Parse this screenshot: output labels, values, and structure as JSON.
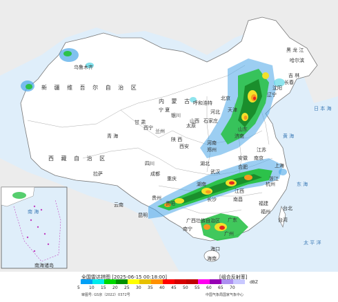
{
  "map": {
    "provinces_north": [
      {
        "id": "heilongjiang",
        "label": "黑 龙 江"
      },
      {
        "id": "jilin",
        "label": "吉 林"
      },
      {
        "id": "liaoning",
        "label": "辽宁"
      },
      {
        "id": "beijing",
        "label": "北京"
      },
      {
        "id": "tianjin",
        "label": "天津"
      },
      {
        "id": "hebei",
        "label": "河北"
      },
      {
        "id": "shanxi",
        "label": "山西"
      },
      {
        "id": "shandong",
        "label": "山东"
      },
      {
        "id": "henan",
        "label": "河南"
      },
      {
        "id": "neimenggu",
        "label": "内 蒙 古"
      }
    ],
    "provinces_west": [
      {
        "id": "xinjiang",
        "label": "新 疆 维 吾 尔 自 治 区"
      },
      {
        "id": "xizang",
        "label": "西 藏 自 治 区"
      },
      {
        "id": "qinghai",
        "label": "青 海"
      },
      {
        "id": "gansu",
        "label": "甘 肃"
      },
      {
        "id": "ningxia",
        "label": "宁 夏"
      },
      {
        "id": "shaanxi",
        "label": "陕 西"
      },
      {
        "id": "sichuan",
        "label": "四川"
      }
    ],
    "provinces_south": [
      {
        "id": "guizhou",
        "label": "贵州"
      },
      {
        "id": "yunnan",
        "label": "云南"
      },
      {
        "id": "hunan",
        "label": "湖南"
      },
      {
        "id": "hubei",
        "label": "湖北"
      },
      {
        "id": "jiangxi",
        "label": "江西"
      },
      {
        "id": "fujian",
        "label": "福建"
      },
      {
        "id": "zhejiang",
        "label": "浙江"
      },
      {
        "id": "anhui",
        "label": "安徽"
      },
      {
        "id": "jiangsu",
        "label": "江苏"
      },
      {
        "id": "guangdong",
        "label": "广东"
      },
      {
        "id": "guangxi",
        "label": "广西壮族自治区"
      },
      {
        "id": "hainan",
        "label": "海南"
      },
      {
        "id": "taiwan",
        "label": "台湾"
      }
    ],
    "cities": [
      {
        "id": "urumqi",
        "label": "乌鲁木齐"
      },
      {
        "id": "lhasa",
        "label": "拉萨"
      },
      {
        "id": "xining",
        "label": "西宁"
      },
      {
        "id": "lanzhou",
        "label": "兰州"
      },
      {
        "id": "yinchuan",
        "label": "银川"
      },
      {
        "id": "hohhot",
        "label": "呼和浩特"
      },
      {
        "id": "harbin",
        "label": "哈尔滨"
      },
      {
        "id": "changchun",
        "label": "长春"
      },
      {
        "id": "shenyang",
        "label": "沈阳"
      },
      {
        "id": "shijiazhuang",
        "label": "石家庄"
      },
      {
        "id": "taiyuan",
        "label": "太原"
      },
      {
        "id": "jinan",
        "label": "济南"
      },
      {
        "id": "zhengzhou",
        "label": "郑州"
      },
      {
        "id": "xian",
        "label": "西安"
      },
      {
        "id": "chengdu",
        "label": "成都"
      },
      {
        "id": "chongqing",
        "label": "重庆"
      },
      {
        "id": "wuhan",
        "label": "武汉"
      },
      {
        "id": "hefei",
        "label": "合肥"
      },
      {
        "id": "nanjing",
        "label": "南京"
      },
      {
        "id": "shanghai",
        "label": "上海"
      },
      {
        "id": "hangzhou",
        "label": "杭州"
      },
      {
        "id": "changsha",
        "label": "长沙"
      },
      {
        "id": "nanchang",
        "label": "南昌"
      },
      {
        "id": "fuzhou",
        "label": "福州"
      },
      {
        "id": "guiyang",
        "label": "贵阳"
      },
      {
        "id": "kunming",
        "label": "昆明"
      },
      {
        "id": "nanning",
        "label": "南宁"
      },
      {
        "id": "guangzhou",
        "label": "广州"
      },
      {
        "id": "haikou",
        "label": "海口"
      },
      {
        "id": "taipei",
        "label": "台北"
      }
    ],
    "seas": [
      {
        "id": "yellow_sea",
        "label": "黄 海"
      },
      {
        "id": "east_sea",
        "label": "东 海"
      },
      {
        "id": "japan_sea",
        "label": "日 本 海"
      },
      {
        "id": "pacific",
        "label": "太 平 洋"
      },
      {
        "id": "south_sea",
        "label": "南 海"
      }
    ],
    "inset": {
      "label": "南海诸岛"
    }
  },
  "legend": {
    "title": "全国雷达拼图 [2025-06-15 00:18:00]",
    "product": "[组合反射率]",
    "unit": "dBZ",
    "ticks": [
      "5",
      "10",
      "15",
      "20",
      "25",
      "30",
      "35",
      "40",
      "45",
      "50",
      "55",
      "60",
      "65",
      "70"
    ],
    "colors": [
      "#01a0f6",
      "#00ecec",
      "#00d800",
      "#019000",
      "#ffff00",
      "#e7c000",
      "#ff9000",
      "#ff0000",
      "#d60000",
      "#c00000",
      "#ff00f0",
      "#9600b4",
      "#ad90f0",
      "#c8c8ff"
    ],
    "approval": "审图号: GS京（2022）0372号",
    "source": "中国气象局国家气象中心"
  },
  "echo_colors": {
    "light_blue": "#4aa6e8",
    "cyan": "#5fd8e6",
    "green": "#2cc24a",
    "dark_green": "#1a8e2c",
    "yellow": "#f2e02a",
    "orange": "#f59a1e",
    "red": "#e3271f"
  }
}
